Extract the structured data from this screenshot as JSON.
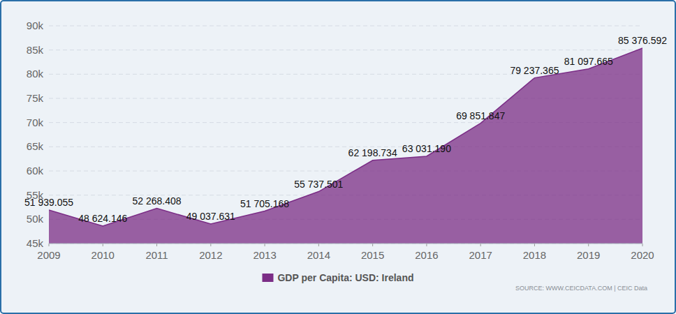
{
  "chart_data": {
    "type": "area",
    "x": [
      2009,
      2010,
      2011,
      2012,
      2013,
      2014,
      2015,
      2016,
      2017,
      2018,
      2019,
      2020
    ],
    "xlim": [
      2009,
      2020
    ],
    "xticks": [
      2009,
      2010,
      2011,
      2012,
      2013,
      2014,
      2015,
      2016,
      2017,
      2018,
      2019,
      2020
    ],
    "ylim": [
      45000,
      90000
    ],
    "yticks": [
      {
        "value": 45000,
        "label": "45k"
      },
      {
        "value": 50000,
        "label": "50k"
      },
      {
        "value": 55000,
        "label": "55k"
      },
      {
        "value": 60000,
        "label": "60k"
      },
      {
        "value": 65000,
        "label": "65k"
      },
      {
        "value": 70000,
        "label": "70k"
      },
      {
        "value": 75000,
        "label": "75k"
      },
      {
        "value": 80000,
        "label": "80k"
      },
      {
        "value": 85000,
        "label": "85k"
      },
      {
        "value": 90000,
        "label": "90k"
      }
    ],
    "grid": true,
    "data_labels": true,
    "series": [
      {
        "name": "GDP per Capita: USD: Ireland",
        "color": "#7b2d86",
        "values": [
          51939.055,
          48624.146,
          52268.408,
          49037.631,
          51705.168,
          55737.501,
          62198.734,
          63031.19,
          69851.847,
          79237.365,
          81097.665,
          85376.592
        ],
        "value_labels": [
          "51 939.055",
          "48 624.146",
          "52 268.408",
          "49 037.631",
          "51 705.168",
          "55 737.501",
          "62 198.734",
          "63 031.190",
          "69 851.847",
          "79 237.365",
          "81 097.665",
          "85 376.592"
        ]
      }
    ],
    "source": "SOURCE: WWW.CEICDATA.COM | CEIC Data"
  }
}
